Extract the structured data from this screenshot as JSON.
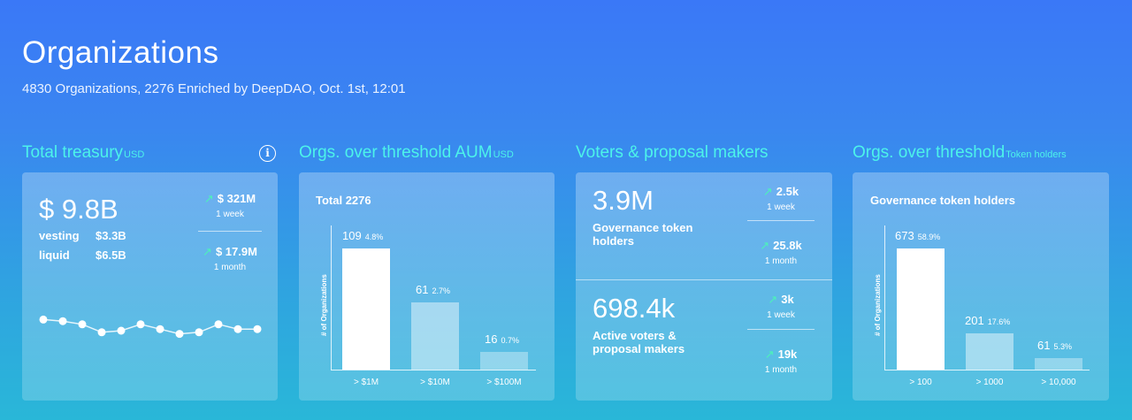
{
  "header": {
    "title": "Organizations",
    "subtitle": "4830 Organizations, 2276 Enriched by DeepDAO, Oct. 1st, 12:01"
  },
  "treasury": {
    "title": "Total treasury",
    "title_sub": "USD",
    "info_icon": "info-icon",
    "total": "$ 9.8B",
    "vesting_label": "vesting",
    "vesting_value": "$3.3B",
    "liquid_label": "liquid",
    "liquid_value": "$6.5B",
    "week_value": "$ 321M",
    "week_label": "1 week",
    "month_value": "$ 17.9M",
    "month_label": "1 month",
    "sparkline": [
      0.6,
      0.55,
      0.45,
      0.2,
      0.25,
      0.45,
      0.3,
      0.15,
      0.2,
      0.45,
      0.3,
      0.3
    ]
  },
  "aum": {
    "title": "Orgs. over threshold AUM",
    "title_sub": "USD",
    "card_title": "Total 2276",
    "y_label": "# of Organizations",
    "bars": [
      {
        "value": "109",
        "pct": "4.8%",
        "tick": "> $1M"
      },
      {
        "value": "61",
        "pct": "2.7%",
        "tick": "> $10M"
      },
      {
        "value": "16",
        "pct": "0.7%",
        "tick": "> $100M"
      }
    ]
  },
  "voters": {
    "title": "Voters & proposal makers",
    "gov_value": "3.9M",
    "gov_label": "Governance token holders",
    "gov_week_value": "2.5k",
    "gov_week_label": "1 week",
    "gov_month_value": "25.8k",
    "gov_month_label": "1 month",
    "active_value": "698.4k",
    "active_label": "Active voters & proposal makers",
    "active_week_value": "3k",
    "active_week_label": "1 week",
    "active_month_value": "19k",
    "active_month_label": "1 month"
  },
  "holders": {
    "title": "Orgs. over threshold",
    "title_sub": "Token holders",
    "card_title": "Governance token holders",
    "y_label": "# of Organizations",
    "bars": [
      {
        "value": "673",
        "pct": "58.9%",
        "tick": "> 100"
      },
      {
        "value": "201",
        "pct": "17.6%",
        "tick": "> 1000"
      },
      {
        "value": "61",
        "pct": "5.3%",
        "tick": "> 10,000"
      }
    ]
  },
  "colors": {
    "accent": "#4cf3ea",
    "trend_up": "#4cf3b8"
  }
}
